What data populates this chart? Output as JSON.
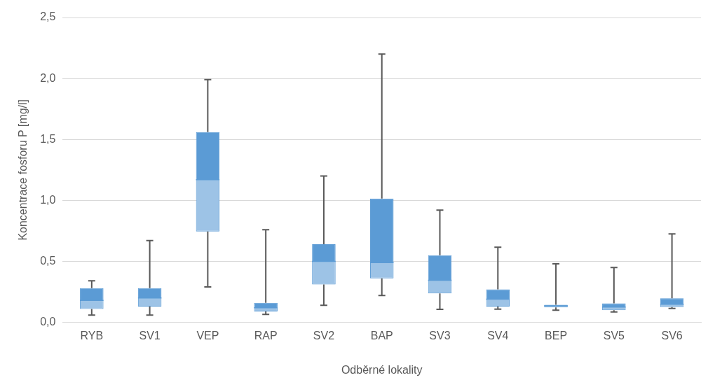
{
  "chart_data": {
    "type": "box",
    "xlabel": "Odběrné lokality",
    "ylabel": "Koncentrace fosforu P [mg/l]",
    "categories": [
      "RYB",
      "SV1",
      "VEP",
      "RAP",
      "SV2",
      "BAP",
      "SV3",
      "SV4",
      "BEP",
      "SV5",
      "SV6"
    ],
    "ylim": [
      0,
      2.5
    ],
    "yticks": [
      {
        "value": 0,
        "label": "0,0"
      },
      {
        "value": 0.5,
        "label": "0,5"
      },
      {
        "value": 1,
        "label": "1,0"
      },
      {
        "value": 1.5,
        "label": "1,5"
      },
      {
        "value": 2,
        "label": "2,0"
      },
      {
        "value": 2.5,
        "label": "2,5"
      }
    ],
    "grid": "y",
    "legend": false,
    "series": [
      {
        "color": "#5b9bd5",
        "boxes": [
          {
            "low": 0.06,
            "q1": 0.11,
            "median": 0.18,
            "q3": 0.28,
            "high": 0.34
          },
          {
            "low": 0.06,
            "q1": 0.13,
            "median": 0.2,
            "q3": 0.28,
            "high": 0.67
          },
          {
            "low": 0.29,
            "q1": 0.745,
            "median": 1.17,
            "q3": 1.56,
            "high": 1.99
          },
          {
            "low": 0.065,
            "q1": 0.09,
            "median": 0.12,
            "q3": 0.16,
            "high": 0.76
          },
          {
            "low": 0.14,
            "q1": 0.31,
            "median": 0.5,
            "q3": 0.64,
            "high": 1.2
          },
          {
            "low": 0.22,
            "q1": 0.36,
            "median": 0.49,
            "q3": 1.015,
            "high": 2.2
          },
          {
            "low": 0.107,
            "q1": 0.237,
            "median": 0.345,
            "q3": 0.55,
            "high": 0.92
          },
          {
            "low": 0.108,
            "q1": 0.13,
            "median": 0.19,
            "q3": 0.27,
            "high": 0.616
          },
          {
            "low": 0.1,
            "q1": 0.123,
            "median": 0.135,
            "q3": 0.144,
            "high": 0.48
          },
          {
            "low": 0.085,
            "q1": 0.1,
            "median": 0.126,
            "q3": 0.156,
            "high": 0.45
          },
          {
            "low": 0.114,
            "q1": 0.126,
            "median": 0.148,
            "q3": 0.197,
            "high": 0.725
          }
        ]
      }
    ]
  }
}
